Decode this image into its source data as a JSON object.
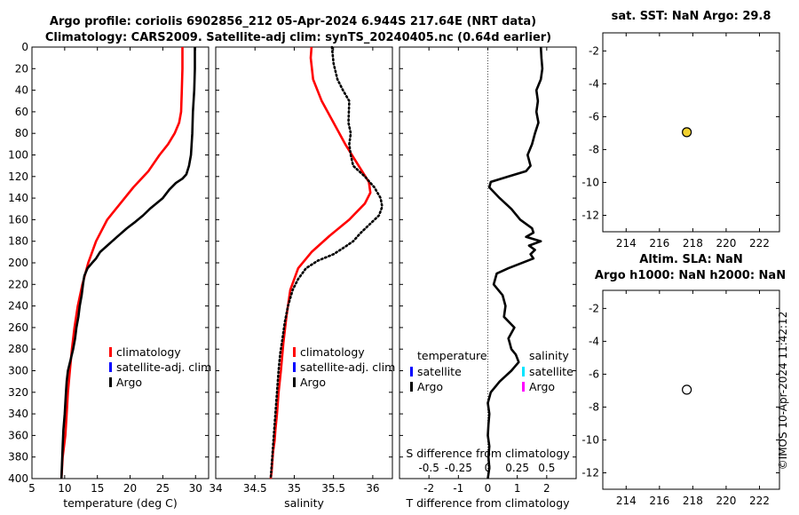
{
  "header": {
    "line1": "Argo profile: coriolis 6902856_212 05-Apr-2024 6.944S 217.64E (NRT data)",
    "line2": "Climatology: CARS2009. Satellite-adj clim: synTS_20240405.nc (0.64d earlier)"
  },
  "watermark": "©IMOS 10-Apr-2024 11:42:12",
  "colors": {
    "climatology": "#ff0000",
    "satellite": "#0000ff",
    "argo": "#000000",
    "salinity_satellite": "#00e5ff",
    "salinity_argo": "#ff00ff",
    "sst_marker": "#f2d12e"
  },
  "chart_data": [
    {
      "id": "temperature",
      "type": "line",
      "xlabel": "temperature (deg C)",
      "xlim": [
        5,
        32
      ],
      "ylim": [
        0,
        400
      ],
      "xticks": [
        "5",
        "10",
        "15",
        "20",
        "25",
        "30"
      ],
      "yticks": [
        "0",
        "20",
        "40",
        "60",
        "80",
        "100",
        "120",
        "140",
        "160",
        "180",
        "200",
        "220",
        "240",
        "260",
        "280",
        "300",
        "320",
        "340",
        "360",
        "380",
        "400"
      ],
      "legend": [
        "climatology",
        "satellite-adj. clim",
        "Argo"
      ],
      "series": [
        {
          "name": "climatology",
          "style": "solid",
          "color": "#ff0000",
          "x": [
            28.0,
            28.0,
            27.9,
            27.8,
            27.5,
            26.8,
            25.8,
            24.5,
            22.8,
            20.5,
            18.5,
            16.5,
            14.8,
            13.6,
            12.7,
            12.0,
            11.5,
            11.1,
            10.8,
            10.5,
            10.3,
            10.1,
            9.9,
            9.7,
            9.6,
            9.5
          ],
          "y": [
            0,
            20,
            40,
            60,
            70,
            80,
            90,
            100,
            115,
            130,
            145,
            160,
            180,
            200,
            220,
            240,
            260,
            280,
            300,
            320,
            340,
            360,
            370,
            380,
            390,
            400
          ]
        },
        {
          "name": "Argo",
          "style": "solid",
          "color": "#000000",
          "x": [
            29.9,
            29.9,
            29.8,
            29.6,
            29.5,
            29.3,
            29.0,
            28.6,
            28.0,
            27.0,
            26.0,
            25.0,
            24.0,
            23.0,
            22.0,
            20.8,
            19.5,
            18.0,
            16.5,
            15.4,
            14.8,
            14.2,
            13.5,
            13.0,
            12.8,
            12.6,
            12.3,
            12.1,
            11.8,
            11.6,
            11.3,
            10.9,
            10.5,
            10.3,
            10.2,
            10.1,
            10.0,
            9.8,
            9.7,
            9.6,
            9.5
          ],
          "y": [
            0,
            20,
            40,
            60,
            80,
            100,
            110,
            118,
            122,
            126,
            132,
            140,
            145,
            150,
            156,
            162,
            168,
            176,
            184,
            190,
            196,
            200,
            205,
            212,
            220,
            230,
            240,
            250,
            260,
            270,
            280,
            290,
            300,
            310,
            320,
            330,
            340,
            355,
            370,
            385,
            400
          ]
        }
      ]
    },
    {
      "id": "salinity",
      "type": "line",
      "xlabel": "salinity",
      "xlim": [
        34.0,
        36.25
      ],
      "ylim": [
        0,
        400
      ],
      "xticks": [
        "34",
        "34.5",
        "35",
        "35.5",
        "36"
      ],
      "legend": [
        "climatology",
        "satellite-adj. clim",
        "Argo"
      ],
      "series": [
        {
          "name": "climatology",
          "style": "solid",
          "color": "#ff0000",
          "x": [
            35.22,
            35.21,
            35.24,
            35.35,
            35.5,
            35.65,
            35.82,
            35.95,
            35.97,
            35.9,
            35.7,
            35.45,
            35.22,
            35.05,
            34.95,
            34.9,
            34.86,
            34.83,
            34.8,
            34.78,
            34.76,
            34.75,
            34.73,
            34.72,
            34.71,
            34.7
          ],
          "y": [
            0,
            10,
            30,
            50,
            70,
            90,
            110,
            125,
            135,
            145,
            160,
            175,
            190,
            205,
            225,
            250,
            275,
            300,
            320,
            340,
            355,
            365,
            375,
            385,
            395,
            400
          ]
        },
        {
          "name": "Argo",
          "style": "dotted",
          "color": "#000000",
          "x": [
            35.48,
            35.5,
            35.55,
            35.62,
            35.7,
            35.69,
            35.72,
            35.7,
            35.72,
            35.75,
            35.9,
            36.02,
            36.1,
            36.12,
            36.08,
            35.95,
            35.85,
            35.75,
            35.65,
            35.5,
            35.3,
            35.15,
            35.05,
            34.98,
            34.92,
            34.88,
            34.85,
            34.82,
            34.8,
            34.78,
            34.76,
            34.74,
            34.72,
            34.7
          ],
          "y": [
            0,
            15,
            30,
            40,
            50,
            70,
            80,
            90,
            100,
            110,
            120,
            130,
            140,
            148,
            156,
            165,
            172,
            180,
            185,
            192,
            198,
            205,
            215,
            225,
            240,
            255,
            270,
            285,
            300,
            320,
            340,
            360,
            380,
            400
          ]
        }
      ]
    },
    {
      "id": "difference",
      "type": "line",
      "xlabel": "T difference from climatology",
      "xlabel_top": "S difference from climatology",
      "xlim": [
        -3,
        3
      ],
      "ylim": [
        0,
        400
      ],
      "xticks": [
        "-2",
        "-1",
        "0",
        "1",
        "2"
      ],
      "xticks_top": [
        "-0.5",
        "-0.25",
        "0",
        "0.25",
        "0.5"
      ],
      "legend_titles": [
        "temperature",
        "salinity"
      ],
      "legend_left": [
        "satellite",
        "Argo"
      ],
      "legend_right": [
        "satellite",
        "Argo"
      ],
      "series": [
        {
          "name": "Argo T difference",
          "style": "solid",
          "color": "#000000",
          "x": [
            1.8,
            1.82,
            1.85,
            1.8,
            1.65,
            1.7,
            1.65,
            1.72,
            1.6,
            1.5,
            1.35,
            1.45,
            1.3,
            0.7,
            0.1,
            0.05,
            0.4,
            0.8,
            1.1,
            1.5,
            1.55,
            1.3,
            1.8,
            1.4,
            1.6,
            1.45,
            1.55,
            0.7,
            0.3,
            0.2,
            0.5,
            0.6,
            0.55,
            0.9,
            0.7,
            0.75,
            0.8,
            0.95,
            1.05,
            0.8,
            0.4,
            0.1,
            0.0,
            0.05,
            0.02,
            0.0,
            0.05,
            0.02,
            0.05,
            0.0
          ],
          "y": [
            0,
            10,
            20,
            30,
            40,
            50,
            60,
            70,
            80,
            90,
            100,
            110,
            115,
            120,
            125,
            130,
            140,
            150,
            160,
            168,
            172,
            176,
            180,
            184,
            188,
            192,
            196,
            205,
            210,
            220,
            230,
            240,
            250,
            260,
            270,
            275,
            280,
            285,
            292,
            300,
            310,
            320,
            330,
            340,
            350,
            360,
            370,
            380,
            390,
            400
          ]
        }
      ]
    },
    {
      "id": "sst_map",
      "type": "scatter",
      "title": "sat. SST: NaN Argo: 29.8",
      "xlim": [
        212.6,
        223.2
      ],
      "ylim": [
        -13,
        -0.9
      ],
      "xticks": [
        "214",
        "216",
        "218",
        "220",
        "222"
      ],
      "yticks": [
        "-2",
        "-4",
        "-6",
        "-8",
        "-10",
        "-12"
      ],
      "points": [
        {
          "x": 217.64,
          "y": -6.944,
          "color": "#f2d12e"
        }
      ]
    },
    {
      "id": "sla_map",
      "type": "scatter",
      "title_line1": "Altim. SLA: NaN",
      "title_line2": "Argo h1000: NaN h2000: NaN",
      "xlim": [
        212.6,
        223.2
      ],
      "ylim": [
        -13,
        -0.9
      ],
      "xticks": [
        "214",
        "216",
        "218",
        "220",
        "222"
      ],
      "yticks": [
        "-2",
        "-4",
        "-6",
        "-8",
        "-10",
        "-12"
      ],
      "points": [
        {
          "x": 217.64,
          "y": -6.944,
          "color": "#ffffff"
        }
      ]
    }
  ]
}
